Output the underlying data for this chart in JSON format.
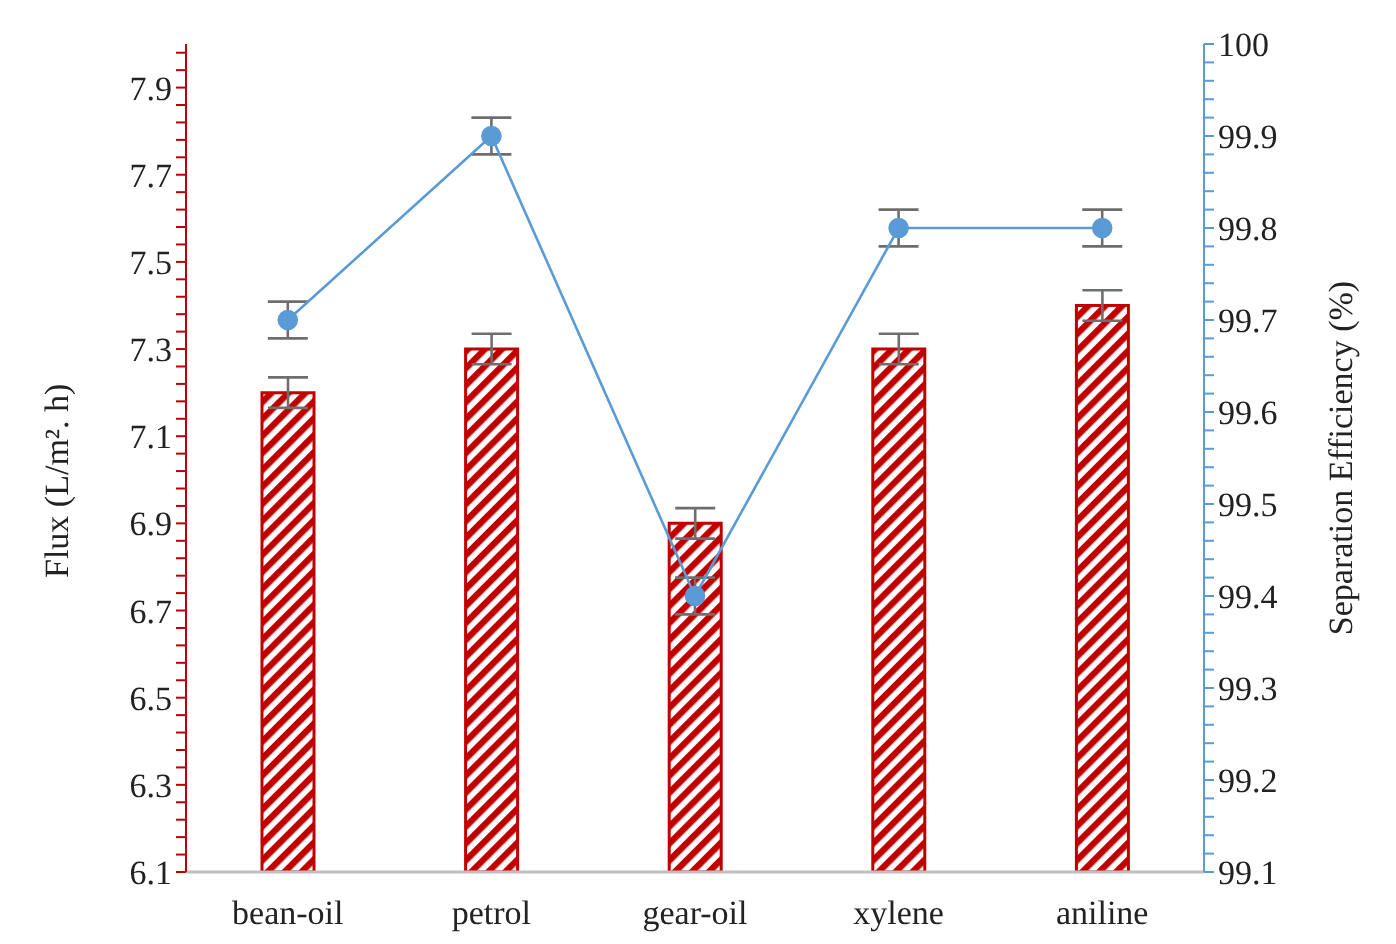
{
  "chart_data": {
    "type": "bar",
    "xlabel": null,
    "ylabel": "Flux (L/m². h)",
    "y2label": "Separation Efficiency (%)",
    "categories": [
      "bean-oil",
      "petrol",
      "gear-oil",
      "xylene",
      "aniline"
    ],
    "series": [
      {
        "color": "#c00000",
        "values": [
          7.2,
          7.3,
          6.9,
          7.3,
          7.4
        ],
        "errors": [
          0.035,
          0.035,
          0.035,
          0.035,
          0.035
        ]
      },
      {
        "type": "line",
        "axis": "y2",
        "color": "#5b9bd5",
        "values": [
          99.7,
          99.9,
          99.4,
          99.8,
          99.8
        ],
        "errors": [
          0.02,
          0.02,
          0.02,
          0.02,
          0.02
        ],
        "marker": "circle"
      }
    ],
    "ylim": [
      6.1,
      8.0
    ],
    "yticks": [
      6.1,
      {
        "value": 6.14,
        "label": null
      },
      {
        "value": 6.18,
        "label": null
      },
      {
        "value": 6.22,
        "label": null
      },
      {
        "value": 6.26,
        "label": null
      },
      6.3,
      {
        "value": 6.34,
        "label": null
      },
      {
        "value": 6.38,
        "label": null
      },
      {
        "value": 6.42,
        "label": null
      },
      {
        "value": 6.46,
        "label": null
      },
      6.5,
      {
        "value": 6.54,
        "label": null
      },
      {
        "value": 6.58,
        "label": null
      },
      {
        "value": 6.62,
        "label": null
      },
      {
        "value": 6.66,
        "label": null
      },
      6.7,
      {
        "value": 6.74,
        "label": null
      },
      {
        "value": 6.78,
        "label": null
      },
      {
        "value": 6.82,
        "label": null
      },
      {
        "value": 6.86,
        "label": null
      },
      6.9,
      {
        "value": 6.94,
        "label": null
      },
      {
        "value": 6.98,
        "label": null
      },
      {
        "value": 7.02,
        "label": null
      },
      {
        "value": 7.06,
        "label": null
      },
      7.1,
      {
        "value": 7.14,
        "label": null
      },
      {
        "value": 7.18,
        "label": null
      },
      {
        "value": 7.22,
        "label": null
      },
      {
        "value": 7.26,
        "label": null
      },
      7.3,
      {
        "value": 7.34,
        "label": null
      },
      {
        "value": 7.38,
        "label": null
      },
      {
        "value": 7.42,
        "label": null
      },
      {
        "value": 7.46,
        "label": null
      },
      7.5,
      {
        "value": 7.54,
        "label": null
      },
      {
        "value": 7.58,
        "label": null
      },
      {
        "value": 7.62,
        "label": null
      },
      {
        "value": 7.66,
        "label": null
      },
      7.7,
      {
        "value": 7.74,
        "label": null
      },
      {
        "value": 7.78,
        "label": null
      },
      {
        "value": 7.82,
        "label": null
      },
      {
        "value": 7.86,
        "label": null
      },
      7.9,
      {
        "value": 7.94,
        "label": null
      },
      {
        "value": 7.98,
        "label": null
      }
    ],
    "y2lim": [
      99.1,
      100
    ],
    "y2ticks": [
      99.1,
      {
        "value": 99.12,
        "label": null
      },
      {
        "value": 99.14,
        "label": null
      },
      {
        "value": 99.16,
        "label": null
      },
      {
        "value": 99.18,
        "label": null
      },
      99.2,
      {
        "value": 99.22,
        "label": null
      },
      {
        "value": 99.24,
        "label": null
      },
      {
        "value": 99.26,
        "label": null
      },
      {
        "value": 99.28,
        "label": null
      },
      99.3,
      {
        "value": 99.32,
        "label": null
      },
      {
        "value": 99.34,
        "label": null
      },
      {
        "value": 99.36,
        "label": null
      },
      {
        "value": 99.38,
        "label": null
      },
      99.4,
      {
        "value": 99.42,
        "label": null
      },
      {
        "value": 99.44,
        "label": null
      },
      {
        "value": 99.46,
        "label": null
      },
      {
        "value": 99.48,
        "label": null
      },
      99.5,
      {
        "value": 99.52,
        "label": null
      },
      {
        "value": 99.54,
        "label": null
      },
      {
        "value": 99.56,
        "label": null
      },
      {
        "value": 99.58,
        "label": null
      },
      99.6,
      {
        "value": 99.62,
        "label": null
      },
      {
        "value": 99.64,
        "label": null
      },
      {
        "value": 99.66,
        "label": null
      },
      {
        "value": 99.68,
        "label": null
      },
      99.7,
      {
        "value": 99.72,
        "label": null
      },
      {
        "value": 99.74,
        "label": null
      },
      {
        "value": 99.76,
        "label": null
      },
      {
        "value": 99.78,
        "label": null
      },
      99.8,
      {
        "value": 99.82,
        "label": null
      },
      {
        "value": 99.84,
        "label": null
      },
      {
        "value": 99.86,
        "label": null
      },
      {
        "value": 99.88,
        "label": null
      },
      99.9,
      {
        "value": 99.92,
        "label": null
      },
      {
        "value": 99.94,
        "label": null
      },
      {
        "value": 99.96,
        "label": null
      },
      {
        "value": 99.98,
        "label": null
      },
      100
    ]
  }
}
